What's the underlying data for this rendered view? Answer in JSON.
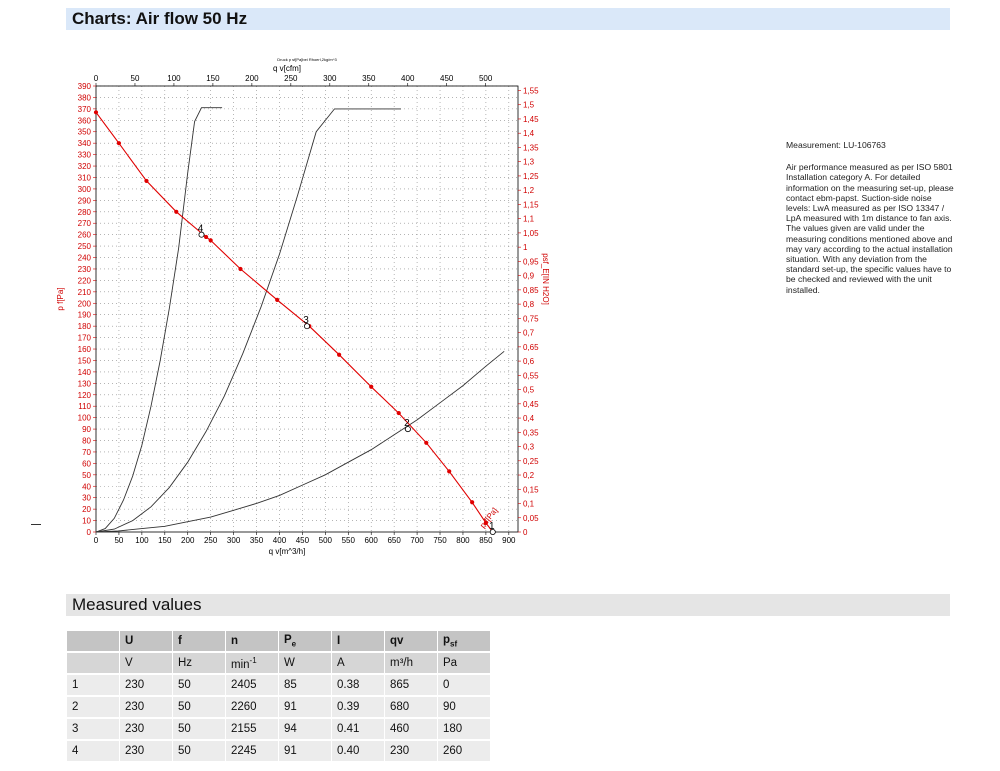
{
  "headers": {
    "charts": "Charts: Air flow 50 Hz",
    "measured": "Measured values"
  },
  "chart_data": {
    "type": "line",
    "subtitle": "Druck p sf[Pa]bei Rhoerl,2kg/m^3",
    "xlabel": "q v[m^3/h]",
    "x2label": "q v[cfm]",
    "ylabel": "p f[Pa]",
    "y2label": "psf_E[IN H2O]",
    "xlim": [
      0,
      920
    ],
    "ylim": [
      0,
      390
    ],
    "x_ticks": [
      0,
      50,
      100,
      150,
      200,
      250,
      300,
      350,
      400,
      450,
      500,
      550,
      600,
      650,
      700,
      750,
      800,
      850,
      900
    ],
    "y_ticks": [
      0,
      10,
      20,
      30,
      40,
      50,
      60,
      70,
      80,
      90,
      100,
      110,
      120,
      130,
      140,
      150,
      160,
      170,
      180,
      190,
      200,
      210,
      220,
      230,
      240,
      250,
      260,
      270,
      280,
      290,
      300,
      310,
      320,
      330,
      340,
      350,
      360,
      370,
      380,
      390
    ],
    "x2_ticks": [
      0,
      50,
      100,
      150,
      200,
      250,
      300,
      350,
      400,
      450,
      500
    ],
    "y2_ticks": [
      0,
      0.05,
      0.1,
      0.15,
      0.2,
      0.25,
      0.3,
      0.35,
      0.4,
      0.45,
      0.5,
      0.55,
      0.6,
      0.65,
      0.7,
      0.75,
      0.8,
      0.85,
      0.9,
      0.95,
      1,
      1.05,
      1.1,
      1.15,
      1.2,
      1.25,
      1.3,
      1.35,
      1.4,
      1.45,
      1.5,
      1.55
    ],
    "grid": true,
    "fan_curve": {
      "label": "p f[Pa]",
      "color": "#e00000",
      "x": [
        0,
        50,
        110,
        175,
        240,
        250,
        315,
        395,
        465,
        530,
        600,
        660,
        720,
        770,
        820,
        850,
        865
      ],
      "y": [
        367,
        340,
        307,
        280,
        258,
        255,
        230,
        203,
        180,
        155,
        127,
        104,
        78,
        53,
        26,
        8,
        0
      ]
    },
    "system_curves": [
      {
        "x": [
          0,
          20,
          40,
          60,
          80,
          100,
          120,
          140,
          160,
          180,
          200,
          215,
          230,
          245,
          260,
          275
        ],
        "y": [
          0,
          3,
          12,
          28,
          49,
          76,
          110,
          150,
          196,
          248,
          314,
          359,
          371,
          371,
          371,
          371
        ]
      },
      {
        "x": [
          0,
          40,
          80,
          120,
          160,
          200,
          240,
          280,
          320,
          360,
          400,
          440,
          480,
          520,
          560,
          600,
          640,
          665
        ],
        "y": [
          0,
          2.5,
          10,
          22,
          39,
          61,
          88,
          119,
          156,
          197,
          243,
          295,
          350,
          370,
          370,
          370,
          370,
          370
        ]
      },
      {
        "x": [
          0,
          50,
          100,
          150,
          200,
          250,
          300,
          350,
          400,
          450,
          500,
          550,
          600,
          650,
          700,
          750,
          800,
          850,
          890
        ],
        "y": [
          0,
          1,
          3,
          5,
          9,
          13,
          19,
          25,
          32,
          41,
          50,
          61,
          72,
          85,
          98,
          113,
          128,
          145,
          158
        ]
      }
    ],
    "operating_points": [
      {
        "label": "1",
        "x": 865,
        "y": 0
      },
      {
        "label": "2",
        "x": 680,
        "y": 90
      },
      {
        "label": "3",
        "x": 460,
        "y": 180
      },
      {
        "label": "4",
        "x": 230,
        "y": 260
      }
    ]
  },
  "note": {
    "measurement": "Measurement: LU-106763",
    "text": "Air performance measured as per ISO 5801 Installation category A. For detailed information on the measuring set-up, please contact ebm-papst. Suction-side noise levels: LwA measured as per ISO 13347 / LpA measured with 1m distance to fan axis. The values given are valid under the measuring conditions mentioned above and may vary according to the actual installation situation. With any deviation from the standard set-up, the specific values have to be checked and reviewed with the unit installed."
  },
  "table": {
    "headers": [
      "",
      "U",
      "f",
      "n",
      "P",
      "I",
      "qv",
      "p"
    ],
    "header_subs": [
      "",
      "",
      "",
      "",
      "e",
      "",
      "",
      "sf"
    ],
    "units": [
      "",
      "V",
      "Hz",
      "min",
      "W",
      "A",
      "m³/h",
      "Pa"
    ],
    "unit_sup": "-1",
    "rows": [
      [
        "1",
        "230",
        "50",
        "2405",
        "85",
        "0.38",
        "865",
        "0"
      ],
      [
        "2",
        "230",
        "50",
        "2260",
        "91",
        "0.39",
        "680",
        "90"
      ],
      [
        "3",
        "230",
        "50",
        "2155",
        "94",
        "0.41",
        "460",
        "180"
      ],
      [
        "4",
        "230",
        "50",
        "2245",
        "91",
        "0.40",
        "230",
        "260"
      ]
    ]
  }
}
